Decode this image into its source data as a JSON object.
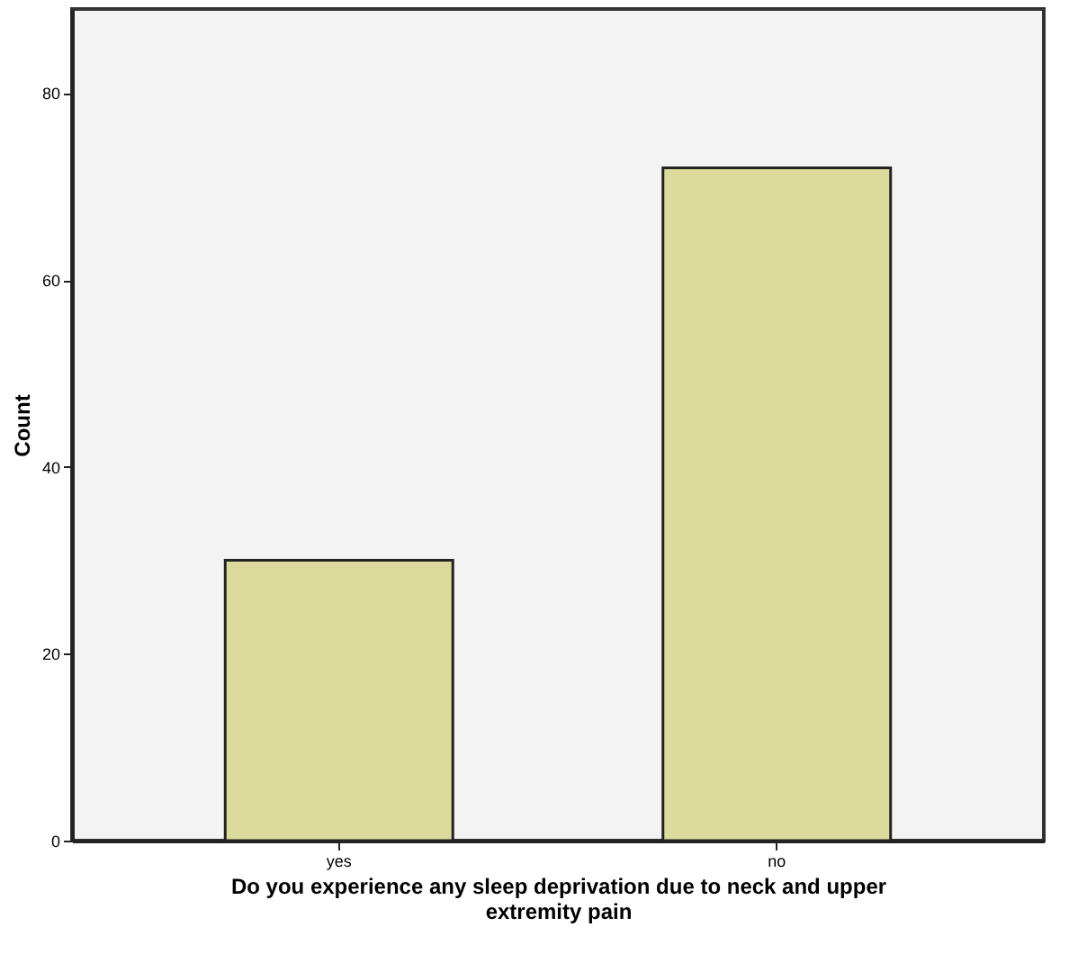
{
  "chart_data": {
    "type": "bar",
    "xlabel": "Do you experience any sleep deprivation due to neck and upper extremity pain",
    "ylabel": "Count",
    "categories": [
      "yes",
      "no"
    ],
    "values": [
      30,
      72
    ],
    "color": "#ddda9e",
    "ylim": [
      0,
      89
    ],
    "yticks": [
      0,
      20,
      40,
      60,
      80
    ],
    "grid": false
  }
}
